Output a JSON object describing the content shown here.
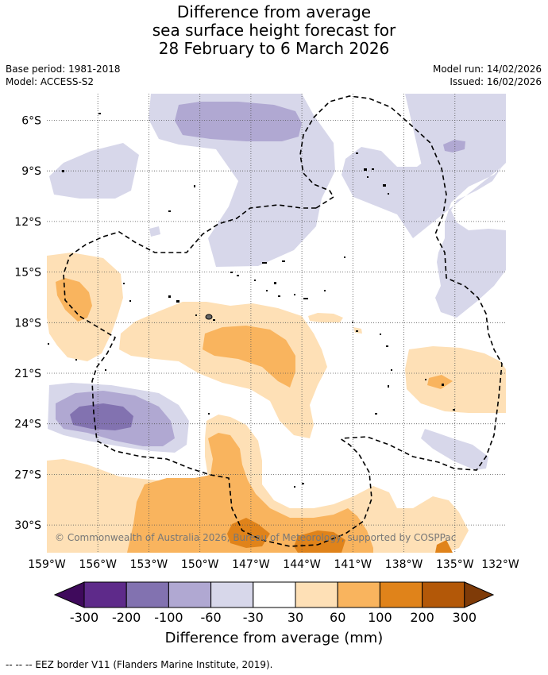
{
  "title": {
    "line1": "Difference from average",
    "line2": "sea surface height forecast for",
    "line3": "28 February to 6 March 2026"
  },
  "meta": {
    "base_period": "Base period: 1981-2018",
    "model": "Model: ACCESS-S2",
    "model_run": "Model run: 14/02/2026",
    "issued": "Issued: 16/02/2026"
  },
  "map": {
    "lat_labels": [
      "6°S",
      "9°S",
      "12°S",
      "15°S",
      "18°S",
      "21°S",
      "24°S",
      "27°S",
      "30°S"
    ],
    "lon_labels": [
      "159°W",
      "156°W",
      "153°W",
      "150°W",
      "147°W",
      "144°W",
      "141°W",
      "138°W",
      "135°W",
      "132°W"
    ],
    "copyright": "© Commonwealth of Australia 2026, Bureau of Meteorology, supported by COSPPac"
  },
  "colorbar": {
    "ticks": [
      "-300",
      "-200",
      "-100",
      "-60",
      "-30",
      "30",
      "60",
      "100",
      "200",
      "300"
    ],
    "title": "Difference from average (mm)",
    "colors": [
      "#3f0a5c",
      "#5e2a8a",
      "#8272b0",
      "#b0a8d2",
      "#d7d7ea",
      "#ffffff",
      "#fee0b6",
      "#f9b45e",
      "#e0831a",
      "#b35808",
      "#7f3b08"
    ]
  },
  "footnote": "--  --  -- EEZ border V11 (Flanders Marine Institute, 2019)."
}
